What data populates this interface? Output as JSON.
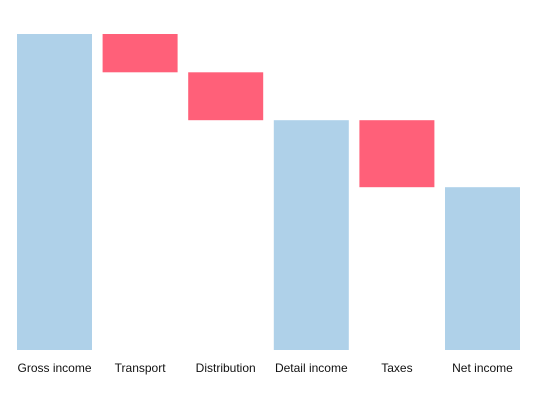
{
  "chart_data": {
    "type": "bar",
    "subtype": "waterfall",
    "categories": [
      "Gross income",
      "Transport",
      "Distribution",
      "Detail income",
      "Taxes",
      "Net income"
    ],
    "bars": [
      {
        "category": "Gross income",
        "kind": "total",
        "start": 0,
        "end": 330
      },
      {
        "category": "Transport",
        "kind": "decrease",
        "start": 330,
        "end": 290
      },
      {
        "category": "Distribution",
        "kind": "decrease",
        "start": 290,
        "end": 240
      },
      {
        "category": "Detail income",
        "kind": "total",
        "start": 0,
        "end": 240
      },
      {
        "category": "Taxes",
        "kind": "decrease",
        "start": 240,
        "end": 170
      },
      {
        "category": "Net income",
        "kind": "total",
        "start": 0,
        "end": 170
      }
    ],
    "ylim": [
      0,
      330
    ],
    "title": "",
    "xlabel": "",
    "ylabel": "",
    "grid": false,
    "legend": "none",
    "colors": {
      "total": "#afd1e9",
      "decrease": "#ff6079"
    }
  }
}
